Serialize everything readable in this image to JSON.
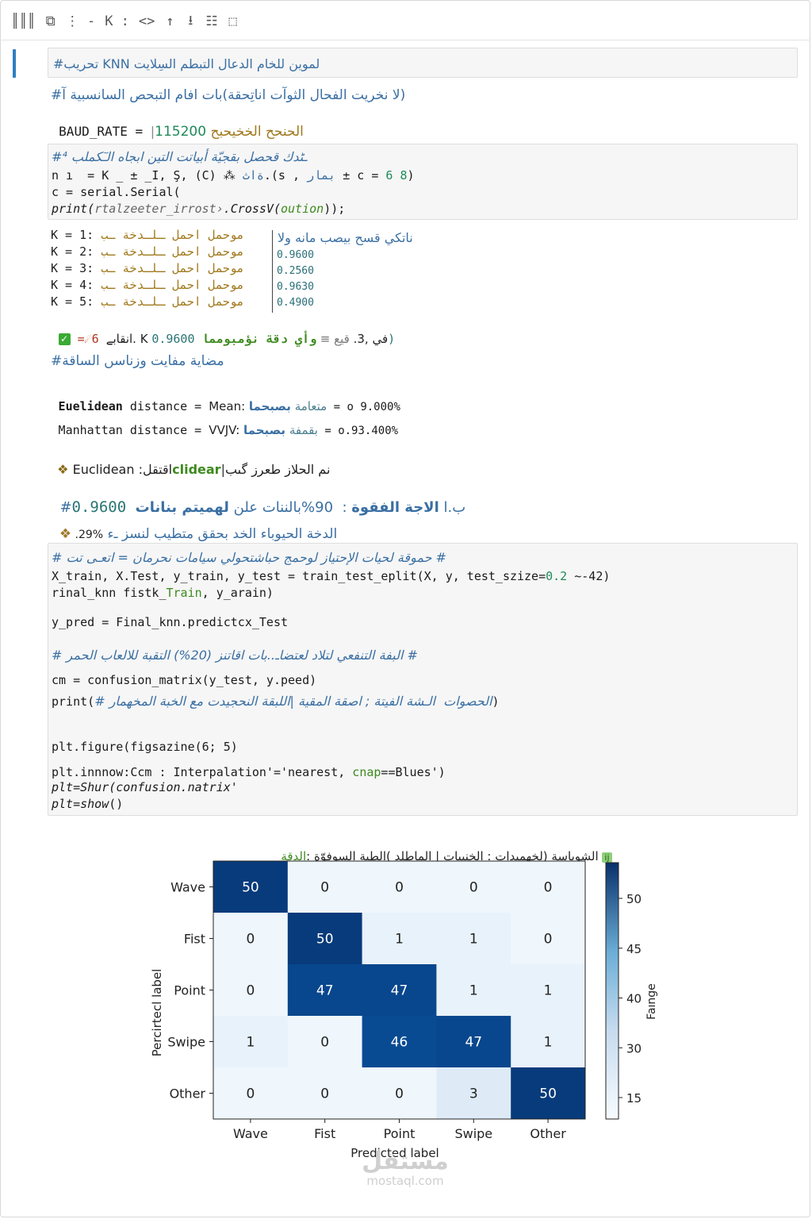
{
  "toolbar": {
    "icons": [
      "column-icon",
      "stop-icon",
      "more-icon",
      "k-icon",
      "code-icon",
      "up-arrow-icon",
      "hr-icon",
      "list-icon",
      "comment-icon"
    ],
    "glyphs": [
      "║║║",
      "⧉",
      "⋮ -",
      "K :",
      "<>",
      "↑",
      "⭳",
      "☷",
      "⬚"
    ]
  },
  "cell1": {
    "text": "#تحريب KNN لموين للخام الدعال التبطم السِلايت"
  },
  "text1": {
    "line1": "#لا نخريت الفحال الثوآت اناتِحقة)بات افام التبحص السانسبية آ)",
    "baud_label": "BAUD_RATE",
    "baud_eq": " = ",
    "baud_value": "115200",
    "baud_comment": " الحنحح الخخيحبح"
  },
  "cell2": {
    "line1": "#ـٹدك قحصل بقجيّة أبياتت التين ابجاه الـٓكملب ⁴",
    "line2_a": "n ı  = K _ ± _I, Ş, (C) ⁂ ",
    "line2_b": "ةاث",
    "line2_c": ".(s , ",
    "line2_d": "بمار",
    "line2_e": " ± c = ",
    "line2_f": "6 8",
    "line2_g": ")",
    "line3": "c = serial.Serial(",
    "line4_a": "print(",
    "line4_b": "rtalzeeter_irrost›",
    "line4_c": ".CrossV(",
    "line4_d": "oution",
    "line4_e": "));"
  },
  "knn_results": {
    "header": "ناتكي قسح بيصب مانه ولا",
    "rows": [
      {
        "k": "K = 1:",
        "label": "موحمل احمل ـلـدخة ـب",
        "value": ""
      },
      {
        "k": "K = 2:",
        "label": "موحمل احمل ـلـدخة ـب",
        "value": "0.9600"
      },
      {
        "k": "K = 3:",
        "label": "موحمل احمل ـلـدخة ـب",
        "value": "0.2560"
      },
      {
        "k": "K = 4:",
        "label": "موحمل احمل ـلـدخة ـب",
        "value": "0.9630"
      },
      {
        "k": "K = 5:",
        "label": "موحمل احمل ـلـدخة ـب",
        "value": "0.4900"
      }
    ],
    "summary_a": " =☄6 ",
    "summary_b": "انقابے. K في ,3. ",
    "summary_c": "قيع ≡ ",
    "summary_d": "وأي دقة نؤمبومما",
    "summary_e": " 0.9600)"
  },
  "distances": {
    "header": "#مضاية مفايت وزناسں الساقة",
    "euclid_label": "Euelidean",
    "euclid_rest": " distance = ",
    "euclid_mean": "Mean: ",
    "euclid_arabic1": "متعامة ",
    "euclid_arabic2": "بصبحما",
    "euclid_value": " = o 9.000%",
    "manhattan_label": "Manhattan distance = ",
    "manhattan_vw": "VVJV: ",
    "manhattan_arabic1": "بقمفة ",
    "manhattan_arabic2": "بصبحما",
    "manhattan_value": " = o.93.400%"
  },
  "chosen": {
    "icon_glyph": "❖",
    "prefix": " Euclidean :اقتقل",
    "highlight": "clidear",
    "suffix": "نم الحلاز طعرز گىب"
  },
  "accuracy": {
    "line1_a": "#ب.ا ",
    "line1_b": "الاجة الفقوة",
    "line1_c": " :  90%",
    "line1_d": "بالننات علن ",
    "line1_e": "لهميتم بنانات",
    "line1_f": " 0.9600",
    "line2_icon": "❖",
    "line2_a": " .29%",
    "line2_b": " الدخة الحيوباء الخد بحقق متطيب لنسز ـء"
  },
  "cell3": {
    "c1": "# حموقة لحيات الإحتياز لوحمج حباشتحولي سيامات نحرمان = اتعـى تت #",
    "l2_a": "X_train, X.Test, y_train, y_test = train_test_eplit(X, y, test_szize=",
    "l2_b": "0.2",
    "l2_c": " ~-42)",
    "l3_a": "rinal_knn fistk_",
    "l3_b": "Train",
    "l3_c": ", y_arain)",
    "l4": "y_pred = Final_knn.predictcx_Test",
    "c2": "# البفة التنفعي لتلاد لعتضاـ..بات اقاتنز (20%) التقبة للالعاب الحمر #",
    "l5": "cm = confusion_matrix(y_test, y.peed)",
    "l6_a": "print(",
    "l6_b": "# الحصوات  الـشة الفيتة ; اصقة المقية |اللبقة النحجيدت مع الخبة المخهمار",
    "l6_c": ")",
    "l7": "plt.figure(figsazine(6; 5)",
    "l8_a": "plt.innnow:Ccm : Interpalation'='nearest, ",
    "l8_b": "cnap",
    "l8_c": "==Blues')",
    "l9_a": "plt=",
    "l9_b": "Shur(confusion.natrix'",
    "l10_a": "plt=",
    "l10_b": "show",
    "l10_c": "()"
  },
  "chart_title": {
    "icon_glyph": "ij",
    "text_a": "الدقة",
    "text_b": " الشوباسة (لخهميدات : الخنبيات | الماطلد )الطبة السوفوّة :"
  },
  "chart_data": {
    "type": "heatmap",
    "rows": [
      "Wave",
      "Fist",
      "Point",
      "Swipe",
      "Other"
    ],
    "cols": [
      "Wave",
      "Fist",
      "Point",
      "Swipe",
      "Other"
    ],
    "values": [
      [
        50,
        0,
        0,
        0,
        0
      ],
      [
        0,
        50,
        1,
        1,
        0
      ],
      [
        0,
        47,
        47,
        1,
        1
      ],
      [
        1,
        0,
        46,
        47,
        1
      ],
      [
        0,
        0,
        0,
        3,
        50
      ]
    ],
    "xlabel": "Predicted label",
    "ylabel": "Percirtecl label",
    "colorbar_label": "Faınge",
    "colorbar_ticks": [
      15,
      30,
      40,
      45,
      50
    ],
    "colormap": "Blues"
  },
  "watermark": {
    "arabic": "مستقل",
    "latin": "mostaql.com"
  },
  "colors": {
    "accent": "#2f7fc1",
    "comment": "#3a6fa3",
    "green": "#3d8a1d",
    "gold": "#a0781c"
  }
}
